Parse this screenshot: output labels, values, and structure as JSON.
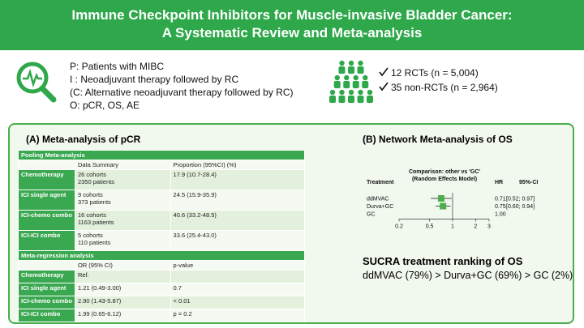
{
  "header": {
    "title_lines": [
      "Immune Checkpoint Inhibitors for Muscle-invasive Bladder Cancer:",
      "A Systematic Review and Meta-analysis"
    ]
  },
  "pico": [
    "P: Patients with MIBC",
    "I : Neoadjuvant therapy followed by RC",
    "(C: Alternative neoadjuvant therapy followed by RC)",
    "O: pCR, OS, AE"
  ],
  "studies": [
    "12 RCTs (n = 5,004)",
    "35 non-RCTs (n = 2,964)"
  ],
  "panel_a": {
    "title": "(A) Meta-analysis of pCR",
    "sections": [
      {
        "heading": "Pooling Meta-analysis",
        "columns": [
          "Data Summary",
          "Proportion (95%CI) (%)"
        ],
        "rows": [
          [
            "Chemotherapy",
            [
              "26 cohorts",
              "2350 patients"
            ],
            "17.9 (10.7-28.4)"
          ],
          [
            "ICI single agent",
            [
              "9 cohorts",
              "373 patients"
            ],
            "24.5 (15.9-35.9)"
          ],
          [
            "ICI-chemo combo",
            [
              "16 cohorts",
              "1163 patients"
            ],
            "40.6 (33.2-48.5)"
          ],
          [
            "ICI-ICI combo",
            [
              "5 cohorts",
              "110 patients"
            ],
            "33.6 (25.4-43.0)"
          ]
        ]
      },
      {
        "heading": "Meta-regression analysis",
        "columns": [
          "OR (95% CI)",
          "p-value"
        ],
        "rows": [
          [
            "Chemotherapy",
            "Ref."
          ],
          [
            "ICI single agent",
            "1.21 (0.49-3.00)",
            "0.7"
          ],
          [
            "ICI-chemo combo",
            "2.90 (1.43-5.87)",
            "< 0.01"
          ],
          [
            "ICI-ICI combo",
            "1.99 (0.65-6.12)",
            "p = 0.2"
          ]
        ]
      }
    ]
  },
  "panel_b": {
    "title": "(B) Network Meta-analysis of OS",
    "forest": {
      "title_lines": [
        "Comparison: other vs 'GC'",
        "(Random Effects Model)"
      ],
      "col_treatment": "Treatment",
      "col_hr": "HR",
      "col_ci": "95%-CI",
      "log_scale": true,
      "color": "#4cae4c",
      "xlim": [
        0.2,
        3
      ],
      "xticks": [
        0.2,
        0.5,
        1,
        2,
        3
      ],
      "rows": [
        {
          "treatment": "ddMVAC",
          "hr": 0.71,
          "ci": "[0.52; 0.97]",
          "lo": 0.52,
          "hi": 0.97
        },
        {
          "treatment": "Durva+GC",
          "hr": 0.75,
          "ci": "[0.60; 0.94]",
          "lo": 0.6,
          "hi": 0.94
        },
        {
          "treatment": "GC",
          "hr": {
            "value": 1,
            "label": "1.00"
          }
        }
      ]
    },
    "sucra_title": "SUCRA treatment ranking of OS",
    "sucra_text": "ddMVAC (79%) > Durva+GC (69%) > GC (2%)"
  }
}
